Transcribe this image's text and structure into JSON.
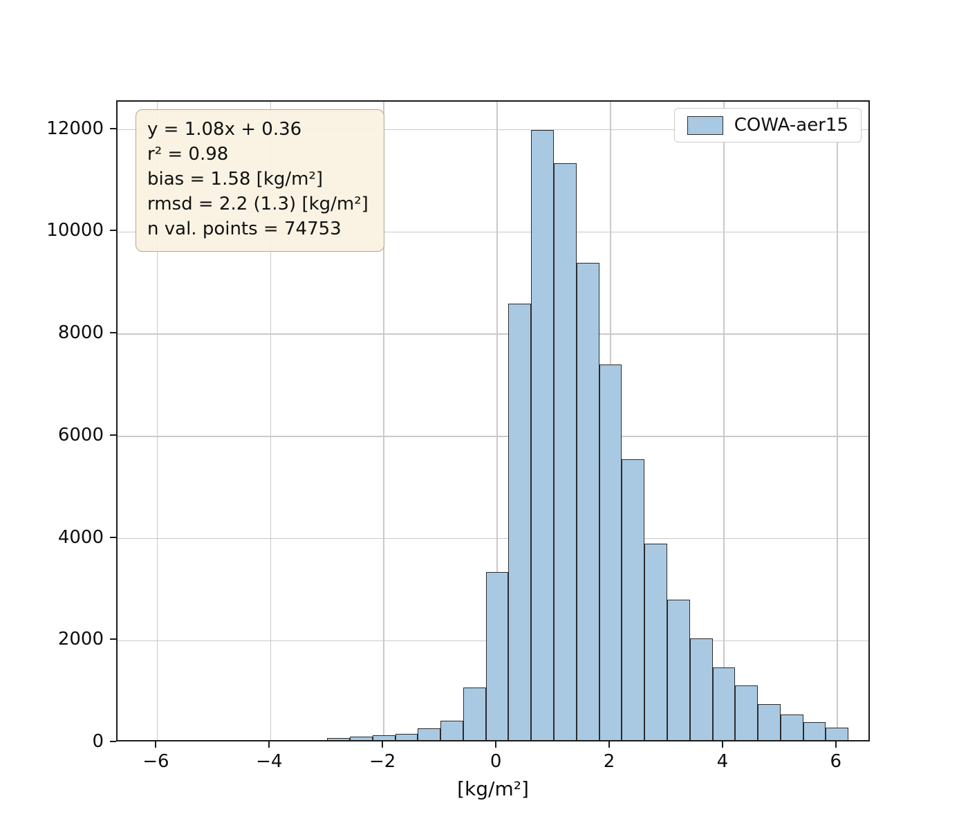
{
  "chart_data": {
    "type": "bar",
    "subtype": "histogram",
    "title": "",
    "xlabel": "[kg/m²]",
    "ylabel": "",
    "xlim": [
      -6.7,
      6.6
    ],
    "ylim": [
      0,
      12550
    ],
    "x_ticks": [
      -6,
      -4,
      -2,
      0,
      2,
      4,
      6
    ],
    "x_tick_labels": [
      "−6",
      "−4",
      "−2",
      "0",
      "2",
      "4",
      "6"
    ],
    "y_ticks": [
      0,
      2000,
      4000,
      6000,
      8000,
      10000,
      12000
    ],
    "y_tick_labels": [
      "0",
      "2000",
      "4000",
      "6000",
      "8000",
      "10000",
      "12000"
    ],
    "grid": true,
    "legend_position": "upper right",
    "series": [
      {
        "name": "COWA-aer15",
        "bin_start": -6.2,
        "bin_width": 0.4,
        "counts": [
          3,
          5,
          8,
          10,
          15,
          30,
          45,
          60,
          90,
          120,
          150,
          170,
          280,
          430,
          1080,
          3350,
          8600,
          12000,
          11350,
          9400,
          7400,
          5550,
          3900,
          2800,
          2050,
          1480,
          1120,
          760,
          550,
          400,
          300
        ]
      }
    ],
    "colors": {
      "bar_fill": "#a9c9e2",
      "bar_edge": "#2b2b2b",
      "grid": "#c9c9c9",
      "spine": "#1a1a1a",
      "text": "#0d0d0d"
    }
  },
  "annotation_box": {
    "background": "#faf2e1",
    "border": "#b3a98f",
    "lines": [
      "y = 1.08x + 0.36",
      "r² = 0.98",
      "bias = 1.58 [kg/m²]",
      "rmsd = 2.2 (1.3) [kg/m²]",
      "n val. points = 74753"
    ]
  },
  "legend": {
    "label": "COWA-aer15"
  }
}
